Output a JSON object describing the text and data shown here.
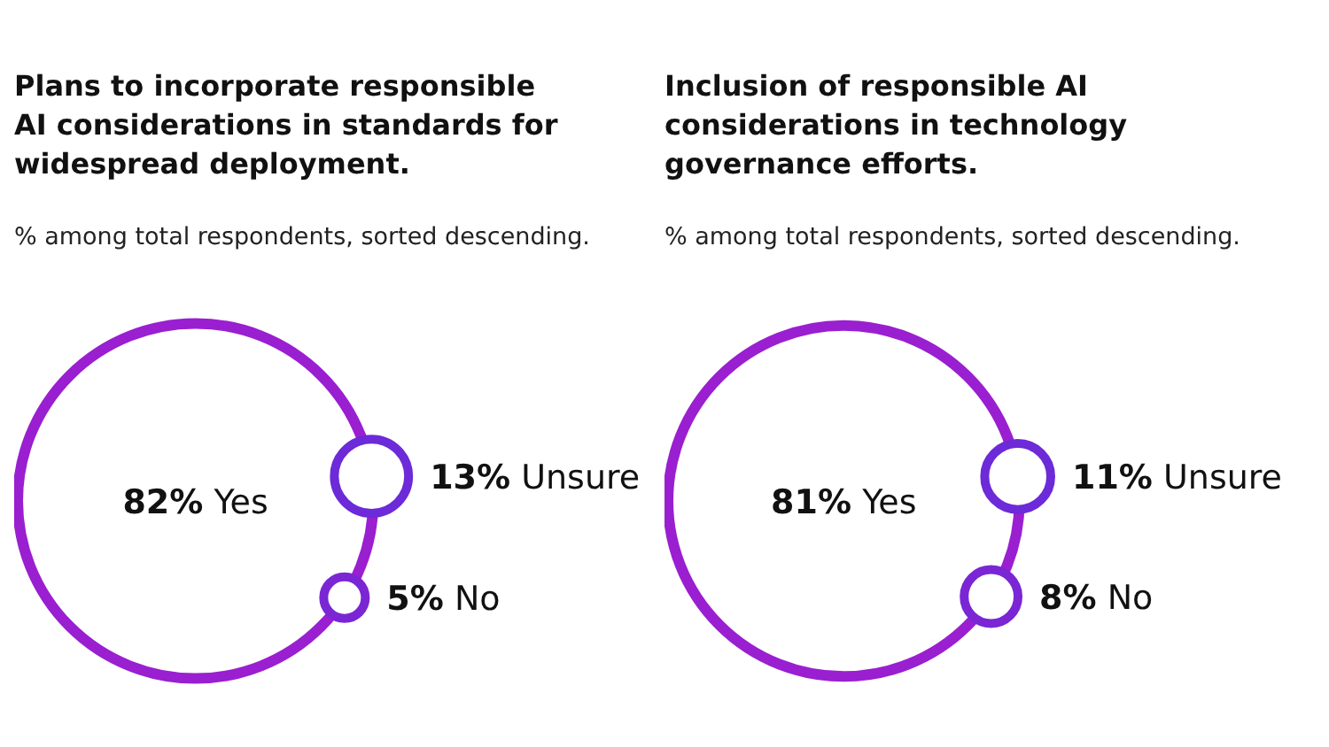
{
  "chart_data": [
    {
      "type": "other",
      "title": "Plans to incorporate responsible AI considerations in standards for widespread deployment.",
      "subtitle": "% among total respondents, sorted descending.",
      "categories": [
        "Yes",
        "Unsure",
        "No"
      ],
      "values": [
        82,
        13,
        5
      ],
      "value_labels": [
        "82%",
        "13%",
        "5%"
      ],
      "colors": [
        "#9a1fd0",
        "#6c2ad8",
        "#7a26d4"
      ]
    },
    {
      "type": "other",
      "title": "Inclusion of responsible AI considerations in technology governance efforts.",
      "subtitle": "% among total respondents, sorted descending.",
      "categories": [
        "Yes",
        "Unsure",
        "No"
      ],
      "values": [
        81,
        11,
        8
      ],
      "value_labels": [
        "81%",
        "11%",
        "8%"
      ],
      "colors": [
        "#9a1fd0",
        "#6c2ad8",
        "#7a26d4"
      ]
    }
  ]
}
